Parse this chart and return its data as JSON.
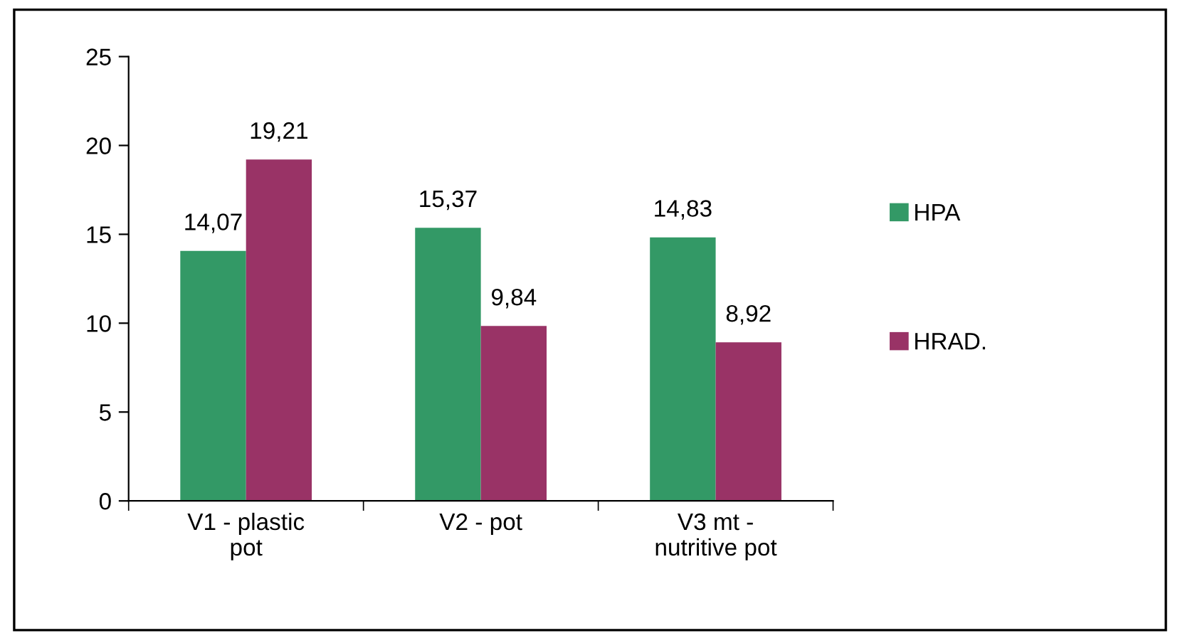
{
  "chart_data": {
    "type": "bar",
    "categories": [
      "V1 - plastic\npot",
      "V2 - pot",
      "V3 mt -\nnutritive pot"
    ],
    "series": [
      {
        "name": "HPA",
        "color": "#339966",
        "values": [
          14.07,
          15.37,
          14.83
        ],
        "value_labels": [
          "14,07",
          "15,37",
          "14,83"
        ]
      },
      {
        "name": "HRAD.",
        "color": "#993366",
        "values": [
          19.21,
          9.84,
          8.92
        ],
        "value_labels": [
          "19,21",
          "9,84",
          "8,92"
        ]
      }
    ],
    "ylim": [
      0,
      25
    ],
    "yticks": [
      0,
      5,
      10,
      15,
      20,
      25
    ],
    "grid": false,
    "legend": "right"
  }
}
